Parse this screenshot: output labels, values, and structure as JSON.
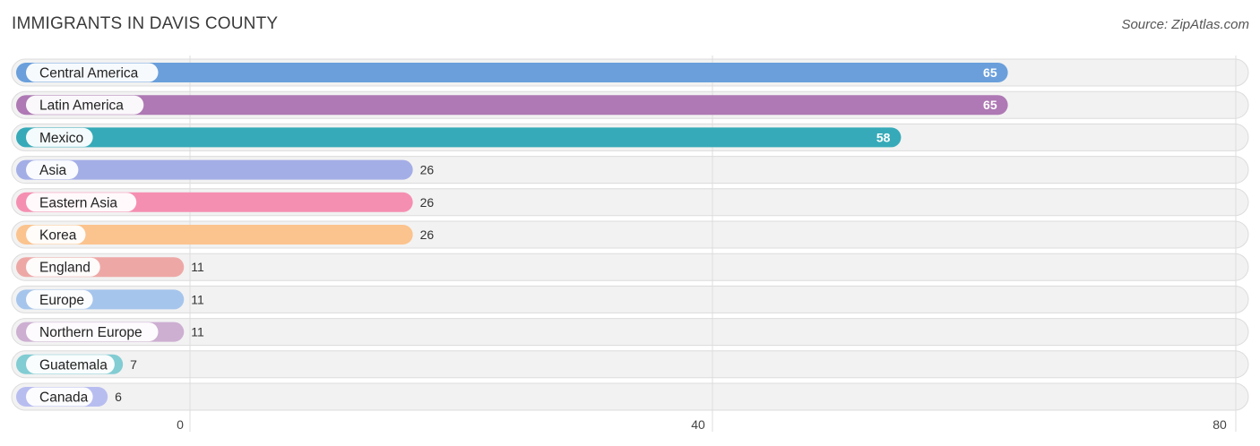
{
  "header": {
    "title": "IMMIGRANTS IN DAVIS COUNTY",
    "source": "Source: ZipAtlas.com"
  },
  "chart_data": {
    "type": "bar",
    "orientation": "horizontal",
    "title": "IMMIGRANTS IN DAVIS COUNTY",
    "categories": [
      "Central America",
      "Latin America",
      "Mexico",
      "Asia",
      "Eastern Asia",
      "Korea",
      "England",
      "Europe",
      "Northern Europe",
      "Guatemala",
      "Canada"
    ],
    "values": [
      65,
      65,
      58,
      26,
      26,
      26,
      11,
      11,
      11,
      7,
      6
    ],
    "colors": [
      "#6a9fdb",
      "#ae79b4",
      "#36aab8",
      "#a4aee6",
      "#f58fb1",
      "#fbc38e",
      "#eda8a6",
      "#a6c5ec",
      "#cdafd2",
      "#82ccd3",
      "#b8bdf0"
    ],
    "xlim": [
      0,
      80
    ],
    "xticks": [
      0,
      40,
      80
    ],
    "grid": true,
    "xlabel": "",
    "ylabel": ""
  }
}
